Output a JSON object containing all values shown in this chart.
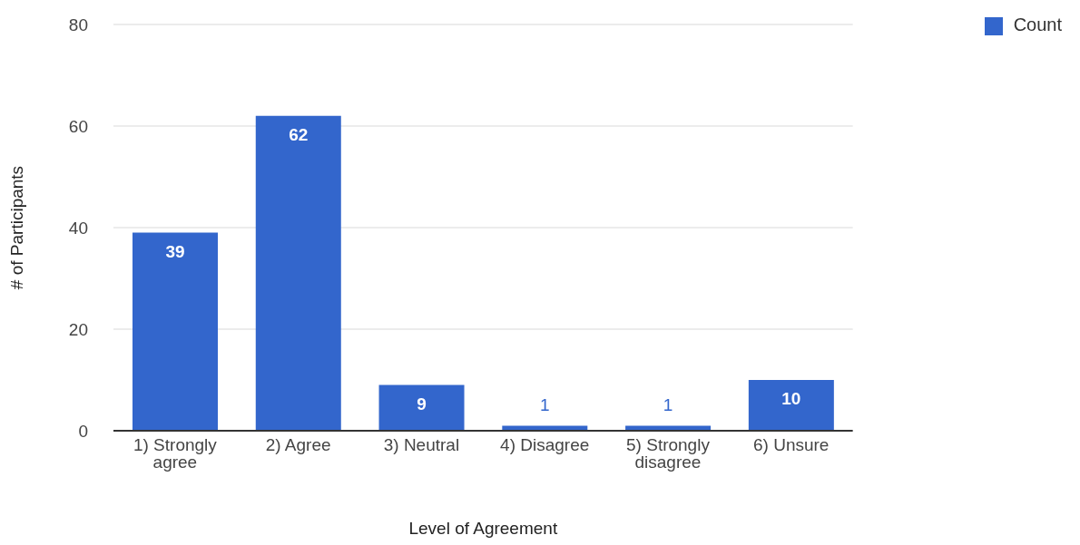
{
  "chart_data": {
    "type": "bar",
    "xlabel": "Level of Agreement",
    "ylabel": "# of Participants",
    "categories": [
      "1) Strongly agree",
      "2) Agree",
      "3) Neutral",
      "4) Disagree",
      "5) Strongly disagree",
      "6) Unsure"
    ],
    "series": [
      {
        "name": "Count",
        "color": "#3366cc",
        "values": [
          39,
          62,
          9,
          1,
          1,
          10
        ]
      }
    ],
    "ylim": [
      0,
      80
    ],
    "yticks": [
      0,
      20,
      40,
      60,
      80
    ],
    "grid": "y",
    "legend": "top right",
    "data_labels": true
  }
}
